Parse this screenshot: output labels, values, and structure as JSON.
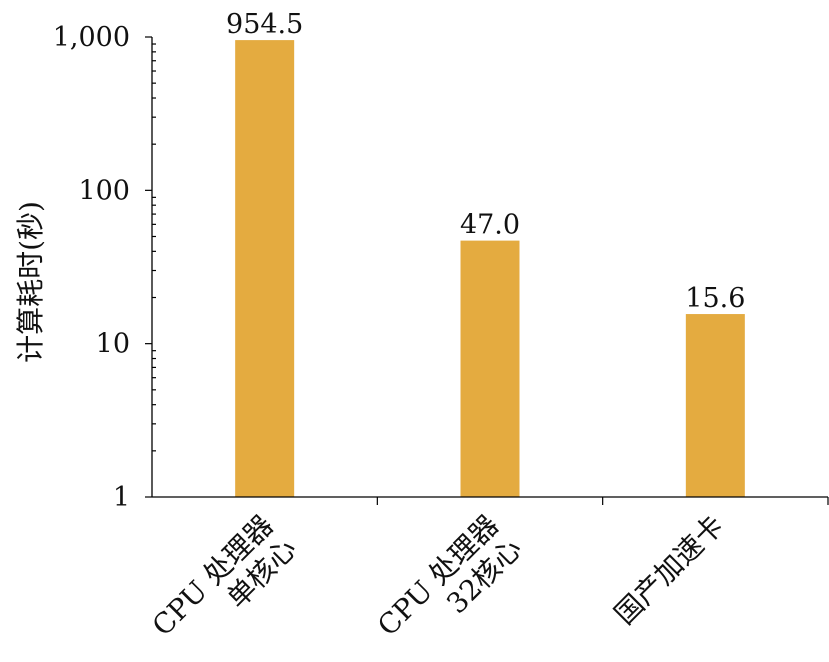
{
  "chart_data": {
    "type": "bar",
    "y_scale": "log",
    "categories": [
      [
        "CPU 处理器",
        "单核心"
      ],
      [
        "CPU 处理器",
        "32核心"
      ],
      [
        "国产加速卡"
      ]
    ],
    "values": [
      954.5,
      47.0,
      15.6
    ],
    "data_labels": [
      "954.5",
      "47.0",
      "15.6"
    ],
    "ylabel": "计算耗时(秒)",
    "ylim": [
      1,
      1000
    ],
    "y_ticks": [
      1,
      10,
      100,
      1000
    ],
    "y_tick_labels": [
      "1",
      "10",
      "100",
      "1,000"
    ],
    "bar_color": "#E4AB40",
    "grid": false
  }
}
